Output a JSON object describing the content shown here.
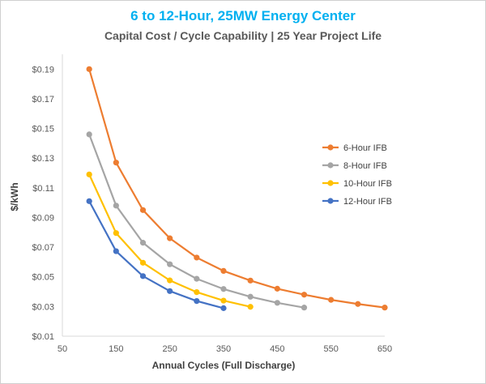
{
  "chart_data": {
    "type": "line",
    "title": "6 to 12-Hour, 25MW Energy Center",
    "subtitle": "Capital Cost / Cycle Capability | 25 Year Project Life",
    "xlabel": "Annual Cycles (Full Discharge)",
    "ylabel": "$/kWh",
    "xlim": [
      50,
      650
    ],
    "ylim": [
      0.01,
      0.2
    ],
    "x_ticks": [
      "50",
      "150",
      "250",
      "350",
      "450",
      "550",
      "650"
    ],
    "y_ticks": [
      "$0.01",
      "$0.03",
      "$0.05",
      "$0.07",
      "$0.09",
      "$0.11",
      "$0.13",
      "$0.15",
      "$0.17",
      "$0.19"
    ],
    "x_tick_values": [
      50,
      150,
      250,
      350,
      450,
      550,
      650
    ],
    "y_tick_values": [
      0.01,
      0.03,
      0.05,
      0.07,
      0.09,
      0.11,
      0.13,
      0.15,
      0.17,
      0.19
    ],
    "grid": false,
    "legend_position": "right",
    "series": [
      {
        "name": "6-Hour IFB",
        "color": "#ed7d31",
        "x": [
          100,
          150,
          200,
          250,
          300,
          350,
          400,
          450,
          500,
          550,
          600,
          650
        ],
        "values": [
          0.19,
          0.127,
          0.095,
          0.076,
          0.063,
          0.054,
          0.0475,
          0.042,
          0.038,
          0.0345,
          0.0317,
          0.0293
        ]
      },
      {
        "name": "8-Hour IFB",
        "color": "#a5a5a5",
        "x": [
          100,
          150,
          200,
          250,
          300,
          350,
          400,
          450,
          500
        ],
        "values": [
          0.146,
          0.098,
          0.073,
          0.0585,
          0.0487,
          0.0418,
          0.0366,
          0.0325,
          0.0293
        ]
      },
      {
        "name": "10-Hour IFB",
        "color": "#ffc000",
        "x": [
          100,
          150,
          200,
          250,
          300,
          350,
          400
        ],
        "values": [
          0.119,
          0.0795,
          0.0595,
          0.0476,
          0.0397,
          0.034,
          0.0298
        ]
      },
      {
        "name": "12-Hour IFB",
        "color": "#4472c4",
        "x": [
          100,
          150,
          200,
          250,
          300,
          350
        ],
        "values": [
          0.101,
          0.0673,
          0.0505,
          0.0404,
          0.0337,
          0.0289
        ]
      }
    ]
  }
}
